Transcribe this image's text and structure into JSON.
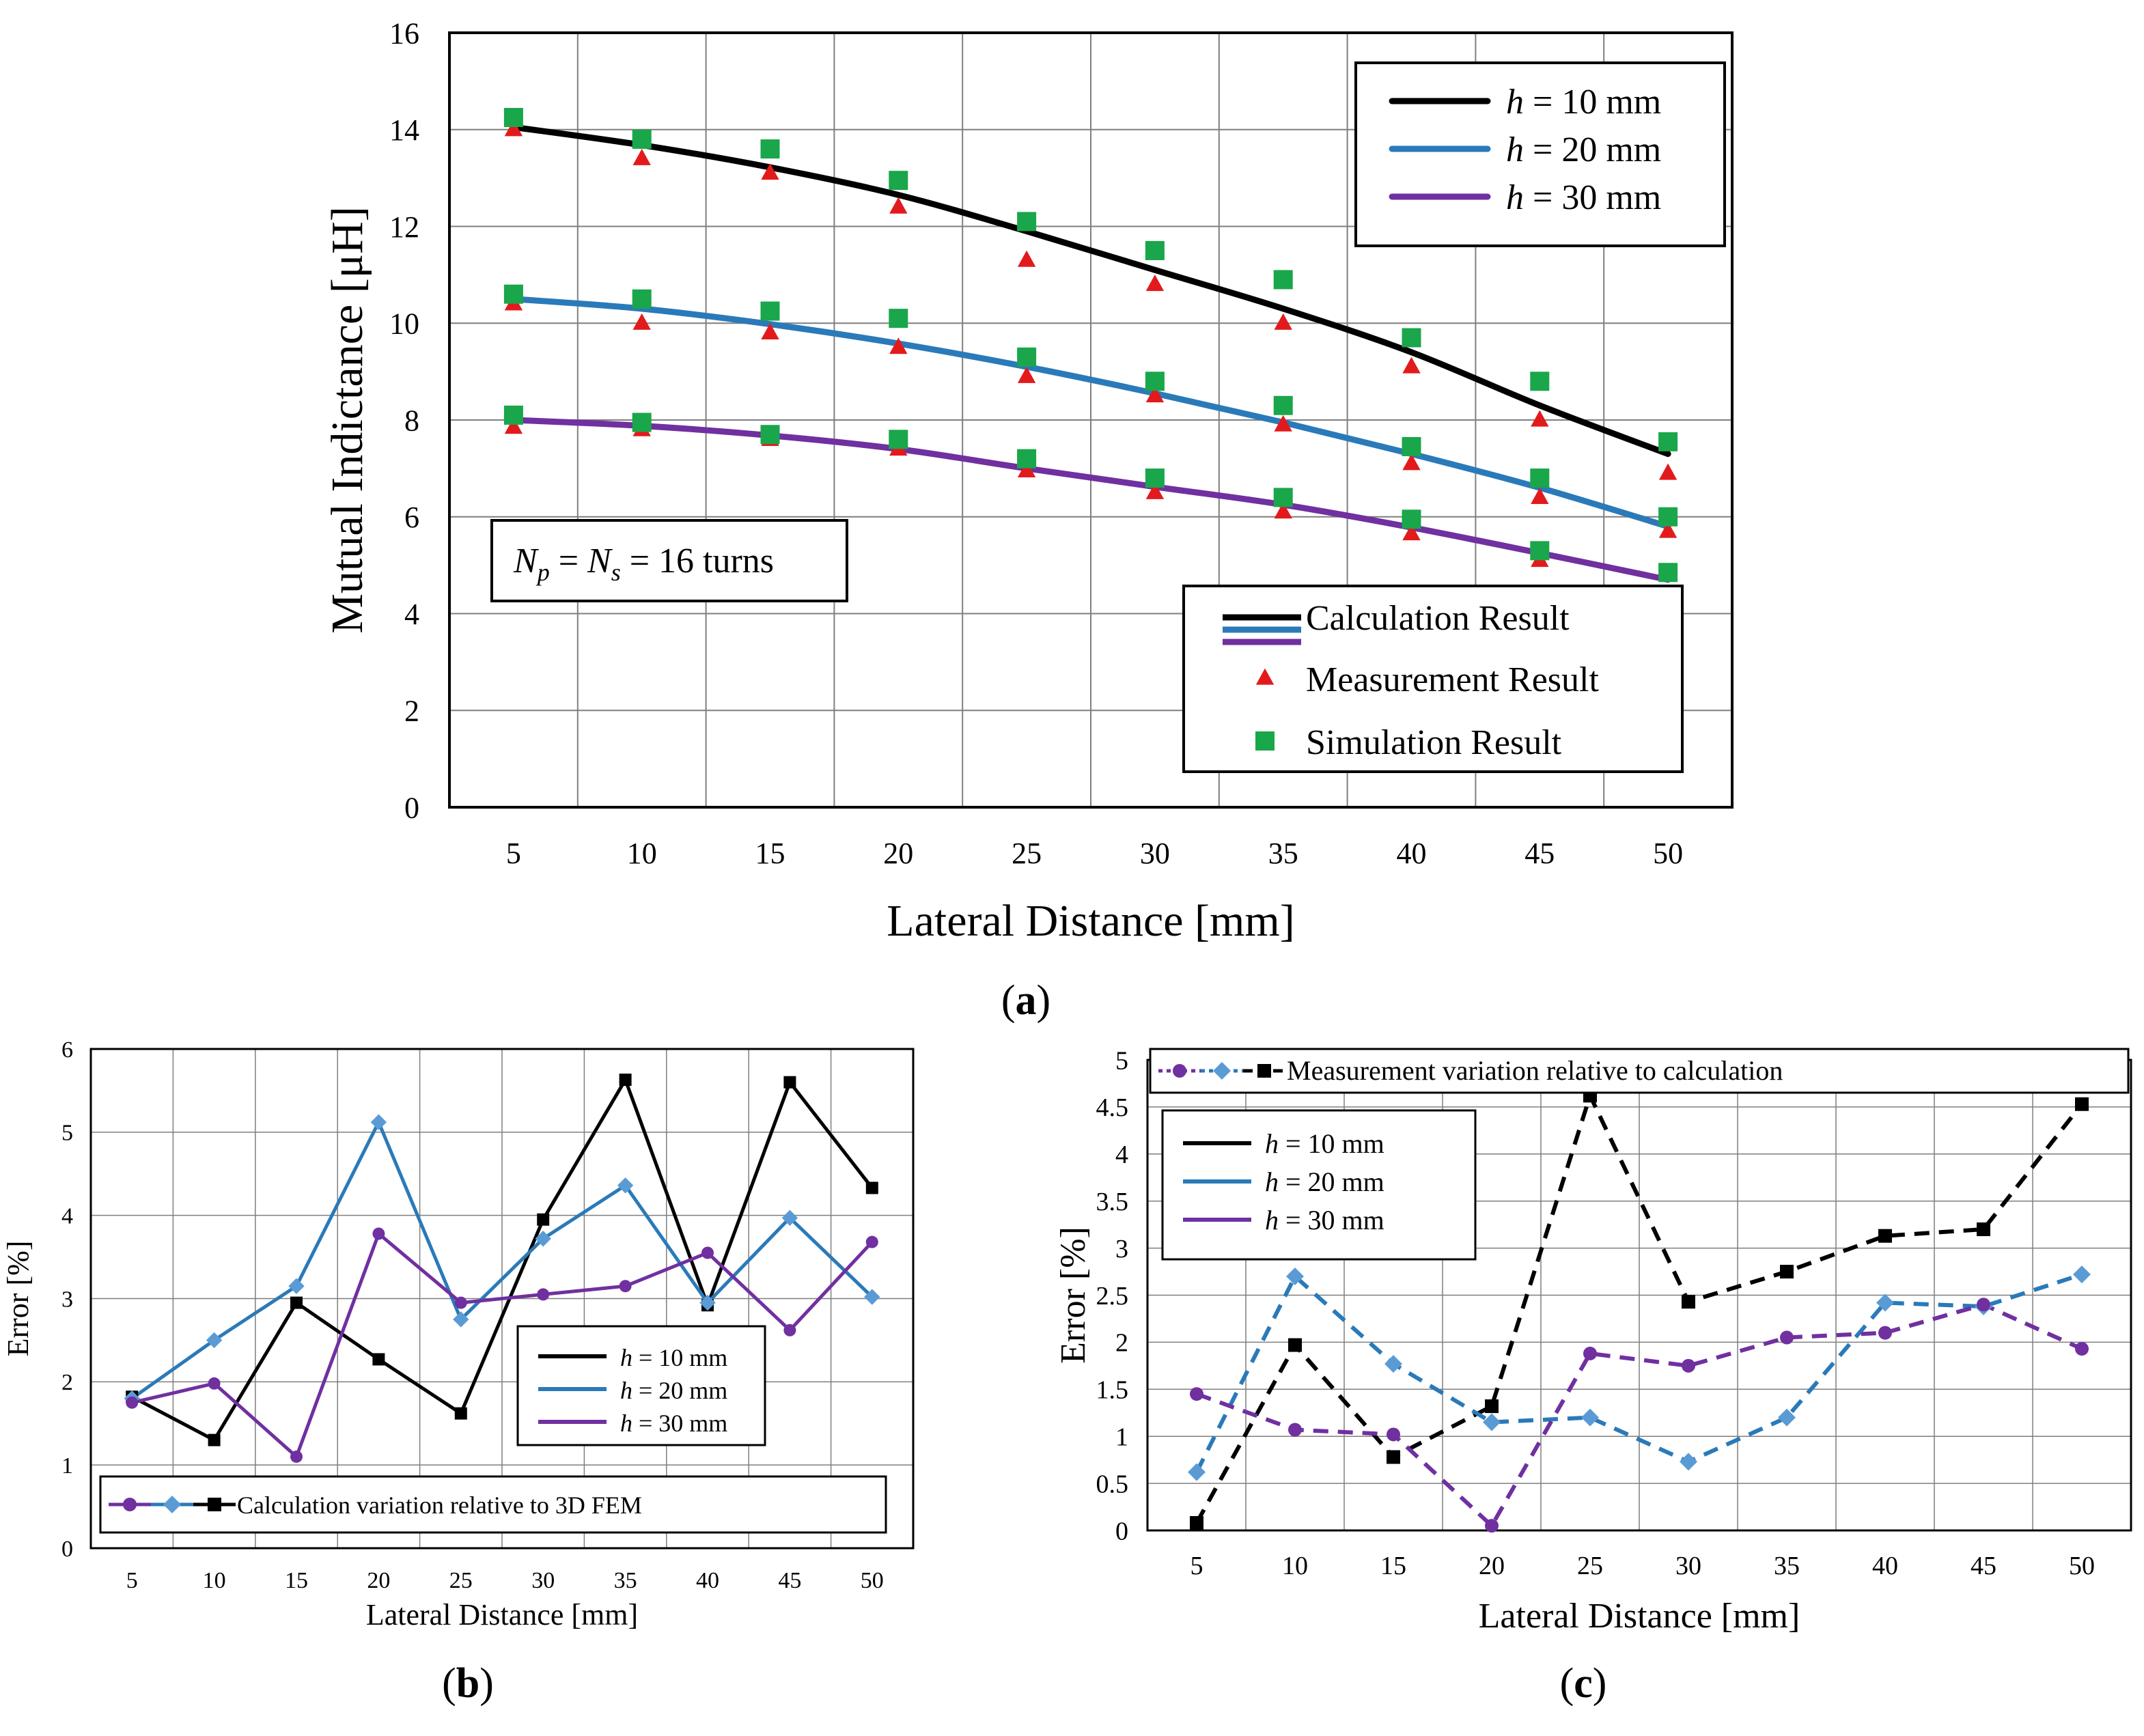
{
  "chart_data": [
    {
      "id": "a",
      "type": "line",
      "panel_label": "(a)",
      "panel_letter": "a",
      "xlabel": "Lateral Distance  [mm]",
      "ylabel": "Mutual Indictance [μH]",
      "categories": [
        "5",
        "10",
        "15",
        "20",
        "25",
        "30",
        "35",
        "40",
        "45",
        "50"
      ],
      "ylim": [
        0,
        16
      ],
      "yticks": [
        "0",
        "2",
        "4",
        "6",
        "8",
        "10",
        "12",
        "14",
        "16"
      ],
      "grid": true,
      "series": [
        {
          "name": "Calculation h = 10 mm",
          "kind": "calc",
          "group": "h10",
          "values": [
            14.05,
            13.68,
            13.22,
            12.65,
            11.9,
            11.1,
            10.3,
            9.4,
            8.3,
            7.3
          ]
        },
        {
          "name": "Calculation h = 20 mm",
          "kind": "calc",
          "group": "h20",
          "values": [
            10.5,
            10.3,
            9.98,
            9.58,
            9.1,
            8.55,
            7.95,
            7.3,
            6.6,
            5.8
          ]
        },
        {
          "name": "Calculation h = 30 mm",
          "kind": "calc",
          "group": "h30",
          "values": [
            8.0,
            7.88,
            7.68,
            7.4,
            7.0,
            6.62,
            6.25,
            5.78,
            5.25,
            4.7
          ]
        },
        {
          "name": "Measurement h = 10 mm",
          "kind": "meas",
          "group": "h10",
          "values": [
            14.0,
            13.4,
            13.1,
            12.4,
            11.3,
            10.8,
            10.0,
            9.1,
            8.0,
            6.9
          ]
        },
        {
          "name": "Measurement h = 20 mm",
          "kind": "meas",
          "group": "h20",
          "values": [
            10.4,
            10.0,
            9.8,
            9.5,
            8.9,
            8.5,
            7.9,
            7.1,
            6.4,
            5.7
          ]
        },
        {
          "name": "Measurement h = 30 mm",
          "kind": "meas",
          "group": "h30",
          "values": [
            7.85,
            7.8,
            7.6,
            7.4,
            6.95,
            6.5,
            6.1,
            5.65,
            5.1,
            null
          ]
        },
        {
          "name": "Simulation h = 10 mm",
          "kind": "sim",
          "group": "h10",
          "values": [
            14.25,
            13.8,
            13.6,
            12.95,
            12.1,
            11.5,
            10.9,
            9.7,
            8.8,
            7.55
          ]
        },
        {
          "name": "Simulation h = 20 mm",
          "kind": "sim",
          "group": "h20",
          "values": [
            10.6,
            10.5,
            10.25,
            10.1,
            9.3,
            8.8,
            8.3,
            7.45,
            6.8,
            6.0
          ]
        },
        {
          "name": "Simulation h = 30 mm",
          "kind": "sim",
          "group": "h30",
          "values": [
            8.1,
            7.95,
            7.7,
            7.6,
            7.2,
            6.8,
            6.4,
            5.95,
            5.3,
            4.85
          ]
        }
      ],
      "legend_h": [
        {
          "h": "h",
          "label": " = 10 mm",
          "group": "h10"
        },
        {
          "h": "h",
          "label": " = 20 mm",
          "group": "h20"
        },
        {
          "h": "h",
          "label": " =  30 mm",
          "group": "h30"
        }
      ],
      "legend_types": {
        "calc": "Calculation Result",
        "meas": "Measurement Result",
        "sim": "Simulation Result"
      },
      "annotation": {
        "Np": "N",
        "Np_sub": "p",
        "eq1": " = ",
        "Ns": "N",
        "Ns_sub": "s",
        "eq2": " = 16 turns"
      }
    },
    {
      "id": "b",
      "type": "line",
      "panel_label": "(b)",
      "panel_letter": "b",
      "xlabel": "Lateral Distance [mm]",
      "ylabel": "Error [%]",
      "categories": [
        "5",
        "10",
        "15",
        "20",
        "25",
        "30",
        "35",
        "40",
        "45",
        "50"
      ],
      "ylim": [
        0,
        6
      ],
      "yticks": [
        "0",
        "1",
        "2",
        "3",
        "4",
        "5",
        "6"
      ],
      "grid": true,
      "series": [
        {
          "name": "h = 10 mm",
          "group": "h10",
          "marker": "square",
          "values": [
            1.82,
            1.3,
            2.95,
            2.27,
            1.62,
            3.95,
            5.63,
            2.92,
            5.6,
            4.33
          ]
        },
        {
          "name": "h = 20 mm",
          "group": "h20",
          "marker": "diamond",
          "values": [
            1.8,
            2.5,
            3.15,
            5.12,
            2.75,
            3.72,
            4.36,
            2.95,
            3.97,
            3.02
          ]
        },
        {
          "name": "h = 30 mm",
          "group": "h30",
          "marker": "circle",
          "values": [
            1.75,
            1.98,
            1.1,
            3.78,
            2.95,
            3.05,
            3.15,
            3.55,
            2.62,
            3.68
          ]
        }
      ],
      "legend_h": [
        {
          "h": "h",
          "label": " = 10 mm",
          "group": "h10"
        },
        {
          "h": "h",
          "label": " = 20 mm",
          "group": "h20"
        },
        {
          "h": "h",
          "label": " =  30 mm",
          "group": "h30"
        }
      ],
      "marker_legend": "Calculation variation relative to 3D FEM"
    },
    {
      "id": "c",
      "type": "line",
      "panel_label": "(c)",
      "panel_letter": "c",
      "xlabel": "Lateral Distance [mm]",
      "ylabel": "Error [%]",
      "categories": [
        "5",
        "10",
        "15",
        "20",
        "25",
        "30",
        "35",
        "40",
        "45",
        "50"
      ],
      "ylim": [
        0,
        5
      ],
      "yticks": [
        "0",
        "0.5",
        "1",
        "1.5",
        "2",
        "2.5",
        "3",
        "3.5",
        "4",
        "4.5",
        "5"
      ],
      "grid": true,
      "series": [
        {
          "name": "h = 10 mm",
          "group": "h10",
          "marker": "square",
          "values": [
            0.08,
            1.97,
            0.78,
            1.32,
            4.62,
            2.43,
            2.75,
            3.13,
            3.2,
            4.53
          ]
        },
        {
          "name": "h = 20 mm",
          "group": "h20",
          "marker": "diamond",
          "values": [
            0.62,
            2.7,
            1.77,
            1.15,
            1.2,
            0.73,
            1.2,
            2.42,
            2.38,
            2.72
          ]
        },
        {
          "name": "h = 30 mm",
          "group": "h30",
          "marker": "circle",
          "values": [
            1.45,
            1.07,
            1.02,
            0.05,
            1.88,
            1.75,
            2.05,
            2.1,
            2.4,
            1.93
          ]
        }
      ],
      "legend_h": [
        {
          "h": "h",
          "label": " = 10 mm",
          "group": "h10"
        },
        {
          "h": "h",
          "label": " = 20 mm",
          "group": "h20"
        },
        {
          "h": "h",
          "label": " = 30 mm",
          "group": "h30"
        }
      ],
      "marker_legend": "Measurement variation relative to calculation"
    }
  ],
  "colors": {
    "h10": "#000000",
    "h20": "#2a7ab9",
    "h30": "#7030a0",
    "h20_marker": "#5b9bd5",
    "meas": "#e31a1c",
    "sim": "#1aa64a",
    "grid": "#7f7f7f"
  }
}
